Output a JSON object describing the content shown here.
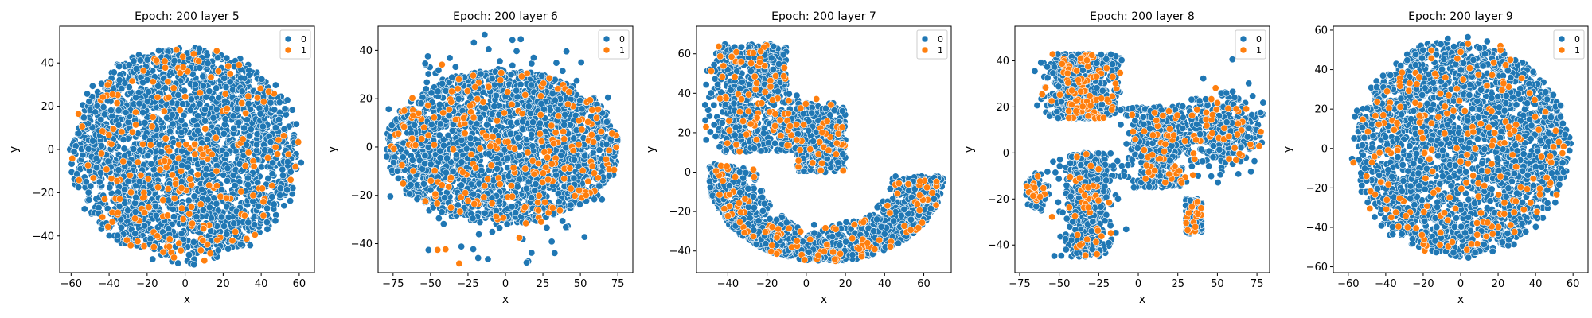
{
  "colors": {
    "class_0": "#1f77b4",
    "class_1": "#ff7f0e",
    "marker_edge": "#ffffff"
  },
  "chart_data": [
    {
      "type": "scatter",
      "title": "Epoch: 200 layer 5",
      "xlabel": "x",
      "ylabel": "y",
      "xlim": [
        -66,
        68
      ],
      "ylim": [
        -57,
        57
      ],
      "xticks": [
        -60,
        -40,
        -20,
        0,
        20,
        40,
        60
      ],
      "yticks": [
        -40,
        -20,
        0,
        20,
        40
      ],
      "legend": {
        "position": "top-right",
        "entries": [
          "0",
          "1"
        ]
      },
      "grid": false,
      "series": [
        {
          "name": "0",
          "shape": "disk",
          "center": [
            0,
            -2
          ],
          "radius": [
            62,
            52
          ]
        },
        {
          "name": "1",
          "shape": "sparse",
          "share": 0.08
        }
      ]
    },
    {
      "type": "scatter",
      "title": "Epoch: 200 layer 6",
      "xlabel": "x",
      "ylabel": "y",
      "xlim": [
        -85,
        85
      ],
      "ylim": [
        -52,
        50
      ],
      "xticks": [
        -75,
        -50,
        -25,
        0,
        25,
        50,
        75
      ],
      "yticks": [
        -40,
        -20,
        0,
        20,
        40
      ],
      "legend": {
        "position": "top-right",
        "entries": [
          "0",
          "1"
        ]
      },
      "grid": false,
      "series": [
        {
          "name": "0",
          "shape": "wide-blob",
          "center": [
            -2,
            0
          ],
          "radius": [
            78,
            32
          ]
        },
        {
          "name": "1",
          "shape": "sparse",
          "share": 0.09
        }
      ]
    },
    {
      "type": "scatter",
      "title": "Epoch: 200 layer 7",
      "xlabel": "x",
      "ylabel": "y",
      "xlim": [
        -56,
        74
      ],
      "ylim": [
        -51,
        74
      ],
      "xticks": [
        -40,
        -20,
        0,
        20,
        40,
        60
      ],
      "yticks": [
        -40,
        -20,
        0,
        20,
        40,
        60
      ],
      "legend": {
        "position": "top-right",
        "entries": [
          "0",
          "1"
        ]
      },
      "grid": false,
      "series": [
        {
          "name": "0",
          "shape": "crescent",
          "center": [
            10,
            8
          ],
          "radius": [
            60,
            58
          ]
        },
        {
          "name": "1",
          "shape": "sparse",
          "share": 0.08
        }
      ]
    },
    {
      "type": "scatter",
      "title": "Epoch: 200 layer 8",
      "xlabel": "x",
      "ylabel": "y",
      "xlim": [
        -78,
        83
      ],
      "ylim": [
        -52,
        55
      ],
      "xticks": [
        -75,
        -50,
        -25,
        0,
        25,
        50,
        75
      ],
      "yticks": [
        -40,
        -20,
        0,
        20,
        40
      ],
      "legend": {
        "position": "top-right",
        "entries": [
          "0",
          "1"
        ]
      },
      "grid": false,
      "series": [
        {
          "name": "0",
          "shape": "branched",
          "center": [
            0,
            0
          ],
          "radius": [
            75,
            50
          ]
        },
        {
          "name": "1",
          "shape": "sparse",
          "share": 0.11
        }
      ]
    },
    {
      "type": "scatter",
      "title": "Epoch: 200 layer 9",
      "xlabel": "x",
      "ylabel": "y",
      "xlim": [
        -68,
        68
      ],
      "ylim": [
        -63,
        62
      ],
      "xticks": [
        -60,
        -40,
        -20,
        0,
        20,
        40,
        60
      ],
      "yticks": [
        -60,
        -40,
        -20,
        0,
        20,
        40,
        60
      ],
      "legend": {
        "position": "top-right",
        "entries": [
          "0",
          "1"
        ]
      },
      "grid": false,
      "series": [
        {
          "name": "0",
          "shape": "disk",
          "center": [
            0,
            0
          ],
          "radius": [
            60,
            57
          ]
        },
        {
          "name": "1",
          "shape": "sparse",
          "share": 0.08
        }
      ]
    }
  ]
}
